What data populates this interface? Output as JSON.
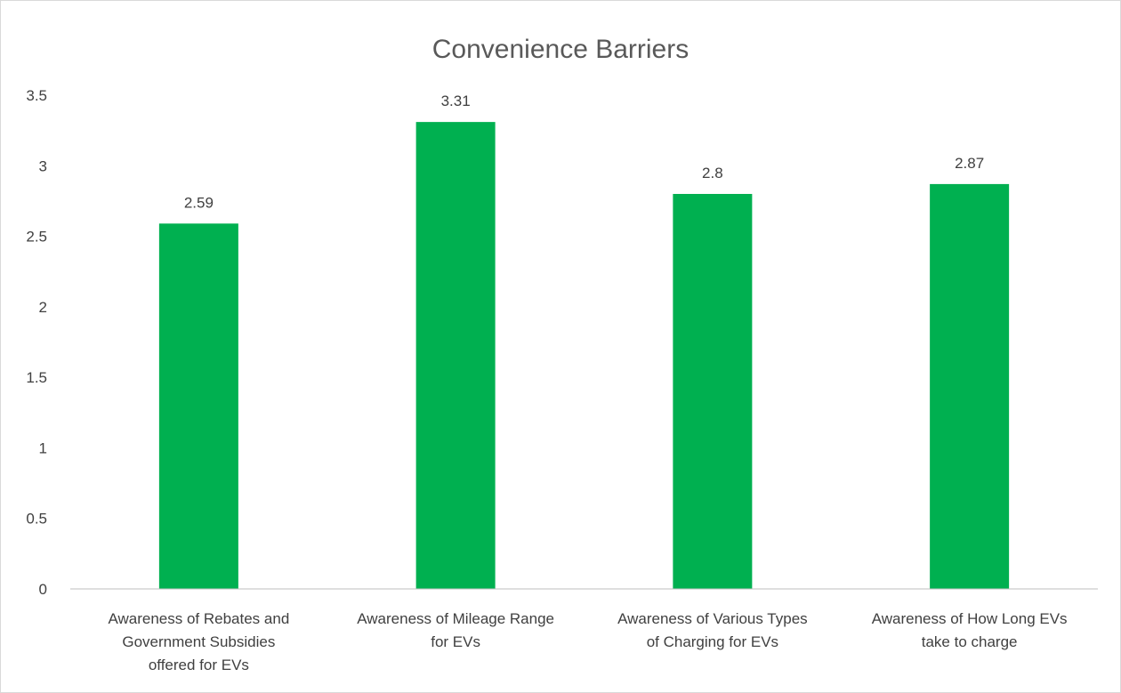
{
  "chart_data": {
    "type": "bar",
    "title": "Convenience Barriers",
    "xlabel": "",
    "ylabel": "",
    "categories": [
      [
        "Awareness of Rebates and",
        "Government Subsidies",
        "offered for EVs"
      ],
      [
        "Awareness of Mileage Range",
        "for EVs"
      ],
      [
        "Awareness of Various Types",
        "of Charging for EVs"
      ],
      [
        "Awareness of How Long EVs",
        "take to charge"
      ]
    ],
    "values": [
      2.59,
      3.31,
      2.8,
      2.87
    ],
    "data_labels": [
      "2.59",
      "3.31",
      "2.8",
      "2.87"
    ],
    "ylim": [
      0,
      3.5
    ],
    "yticks": [
      "0",
      "0.5",
      "1",
      "1.5",
      "2",
      "2.5",
      "3",
      "3.5"
    ],
    "grid": false,
    "legend": "none",
    "bar_color": "#00b050",
    "axis_color": "#bfbfbf"
  }
}
